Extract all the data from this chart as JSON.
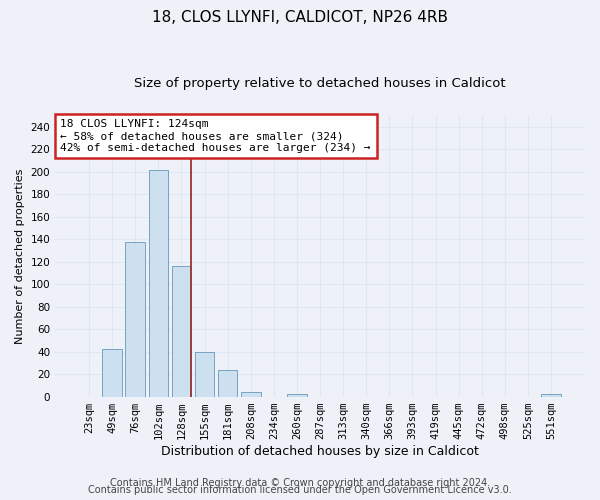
{
  "title1": "18, CLOS LLYNFI, CALDICOT, NP26 4RB",
  "title2": "Size of property relative to detached houses in Caldicot",
  "xlabel": "Distribution of detached houses by size in Caldicot",
  "ylabel": "Number of detached properties",
  "bar_labels": [
    "23sqm",
    "49sqm",
    "76sqm",
    "102sqm",
    "128sqm",
    "155sqm",
    "181sqm",
    "208sqm",
    "234sqm",
    "260sqm",
    "287sqm",
    "313sqm",
    "340sqm",
    "366sqm",
    "393sqm",
    "419sqm",
    "445sqm",
    "472sqm",
    "498sqm",
    "525sqm",
    "551sqm"
  ],
  "bar_values": [
    0,
    42,
    137,
    201,
    116,
    40,
    24,
    4,
    0,
    2,
    0,
    0,
    0,
    0,
    0,
    0,
    0,
    0,
    0,
    0,
    2
  ],
  "bar_color": "#cce0f0",
  "bar_edge_color": "#6699bb",
  "annotation_line1": "18 CLOS LLYNFI: 124sqm",
  "annotation_line2": "← 58% of detached houses are smaller (324)",
  "annotation_line3": "42% of semi-detached houses are larger (234) →",
  "annotation_box_color": "#ffffff",
  "annotation_box_edge": "#cc2222",
  "vline_color": "#993333",
  "vline_x_index": 4,
  "ylim": [
    0,
    250
  ],
  "yticks": [
    0,
    20,
    40,
    60,
    80,
    100,
    120,
    140,
    160,
    180,
    200,
    220,
    240
  ],
  "footer1": "Contains HM Land Registry data © Crown copyright and database right 2024.",
  "footer2": "Contains public sector information licensed under the Open Government Licence v3.0.",
  "bg_color": "#eef2f8",
  "grid_color": "#dde8f4",
  "title1_fontsize": 11,
  "title2_fontsize": 9.5,
  "tick_fontsize": 7.5,
  "xlabel_fontsize": 9,
  "ylabel_fontsize": 8,
  "annot_fontsize": 8,
  "footer_fontsize": 7
}
